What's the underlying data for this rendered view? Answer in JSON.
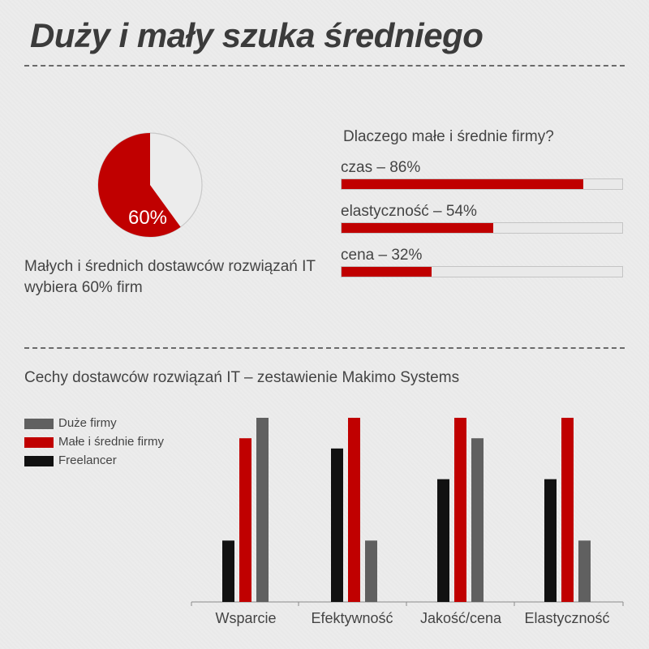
{
  "title": "Duży i mały szuka średniego",
  "pie": {
    "value_label": "60%",
    "percent": 60,
    "caption": "Małych i średnich dostawców rozwiązań IT wybiera 60% firm"
  },
  "reasons": {
    "title": "Dlaczego małe i średnie firmy?",
    "items": [
      {
        "label": "czas – 86%",
        "percent": 86
      },
      {
        "label": "elastyczność – 54%",
        "percent": 54
      },
      {
        "label": "cena – 32%",
        "percent": 32
      }
    ]
  },
  "colors": {
    "red": "#c00000",
    "gray": "#606060",
    "black": "#111111",
    "pie_empty": "#ececec"
  },
  "chart_data": [
    {
      "type": "pie",
      "values": [
        60,
        40
      ],
      "labels": [
        "60%",
        ""
      ]
    },
    {
      "type": "bar",
      "orientation": "horizontal",
      "title": "Dlaczego małe i średnie firmy?",
      "categories": [
        "czas",
        "elastyczność",
        "cena"
      ],
      "values": [
        86,
        54,
        32
      ],
      "xlim": [
        0,
        100
      ]
    },
    {
      "type": "bar",
      "title": "Cechy dostawców rozwiązań IT – zestawienie Makimo Systems",
      "categories": [
        "Wsparcie",
        "Efektywność",
        "Jakość/cena",
        "Elastyczność"
      ],
      "series": [
        {
          "name": "Freelancer",
          "color": "#111111",
          "values": [
            3,
            7.5,
            6,
            6
          ]
        },
        {
          "name": "Małe i średnie firmy",
          "color": "#c00000",
          "values": [
            8,
            9,
            9,
            9
          ]
        },
        {
          "name": "Duże firmy",
          "color": "#606060",
          "values": [
            9,
            3,
            8,
            3
          ]
        }
      ],
      "ylim": [
        0,
        9
      ],
      "legend": [
        {
          "name": "Duże firmy",
          "color": "#606060"
        },
        {
          "name": "Małe i średnie firmy",
          "color": "#c00000"
        },
        {
          "name": "Freelancer",
          "color": "#111111"
        }
      ],
      "grid": false,
      "legend_position": "top-left"
    }
  ]
}
